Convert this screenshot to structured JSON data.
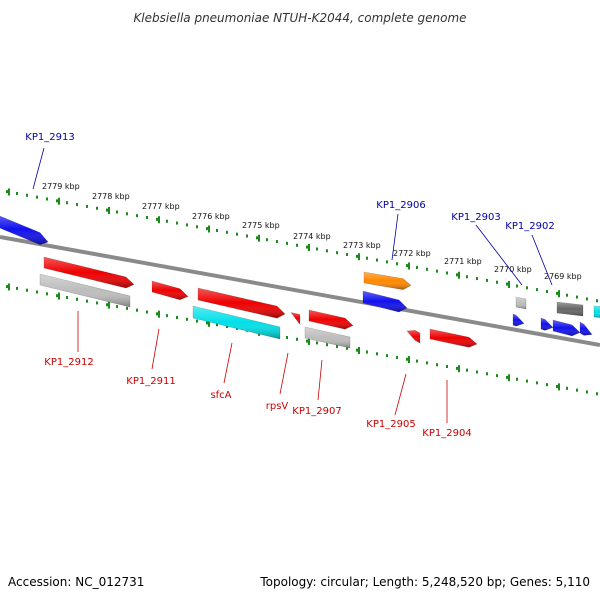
{
  "title": "Klebsiella pneumoniae NTUH-K2044, complete genome",
  "footer": {
    "accession": "Accession: NC_012731",
    "summary": "Topology: circular; Length: 5,248,520 bp; Genes: 5,110"
  },
  "colors": {
    "backbone": "#8a8a8a",
    "ruler": "#1a8a1a",
    "plus_label": "#0000aa",
    "minus_label": "#cc0000",
    "red": "#ee0000",
    "blue": "#1010ee",
    "cyan": "#00e0e8",
    "gray": "#bdbdbd",
    "dark": "#666666",
    "orange": "#ff8800"
  },
  "ruler_ticks": [
    "2779 kbp",
    "2778 kbp",
    "2777 kbp",
    "2776 kbp",
    "2775 kbp",
    "2774 kbp",
    "2773 kbp",
    "2772 kbp",
    "2771 kbp",
    "2770 kbp",
    "2769 kbp"
  ],
  "genes": [
    {
      "label": "KP1_2913",
      "strand": "plus",
      "color": "blue"
    },
    {
      "label": "KP1_2912",
      "strand": "minus",
      "color": "red"
    },
    {
      "label": "",
      "strand": "minus",
      "color": "gray"
    },
    {
      "label": "KP1_2911",
      "strand": "minus",
      "color": "red"
    },
    {
      "label": "",
      "strand": "minus",
      "color": "red"
    },
    {
      "label": "sfcA",
      "strand": "minus",
      "color": "cyan"
    },
    {
      "label": "rpsV",
      "strand": "minus",
      "color": "red"
    },
    {
      "label": "KP1_2907",
      "strand": "minus",
      "color": "red"
    },
    {
      "label": "",
      "strand": "minus",
      "color": "gray"
    },
    {
      "label": "KP1_2906",
      "strand": "plus",
      "color": "orange"
    },
    {
      "label": "",
      "strand": "plus",
      "color": "blue"
    },
    {
      "label": "KP1_2905",
      "strand": "minus",
      "color": "red"
    },
    {
      "label": "KP1_2904",
      "strand": "minus",
      "color": "red"
    },
    {
      "label": "KP1_2903",
      "strand": "plus",
      "color": "gray"
    },
    {
      "label": "",
      "strand": "plus",
      "color": "blue"
    },
    {
      "label": "KP1_2902",
      "strand": "plus",
      "color": "dark"
    },
    {
      "label": "",
      "strand": "plus",
      "color": "blue"
    },
    {
      "label": "",
      "strand": "plus",
      "color": "blue"
    },
    {
      "label": "",
      "strand": "plus",
      "color": "blue"
    },
    {
      "label": "",
      "strand": "plus",
      "color": "cyan"
    }
  ]
}
